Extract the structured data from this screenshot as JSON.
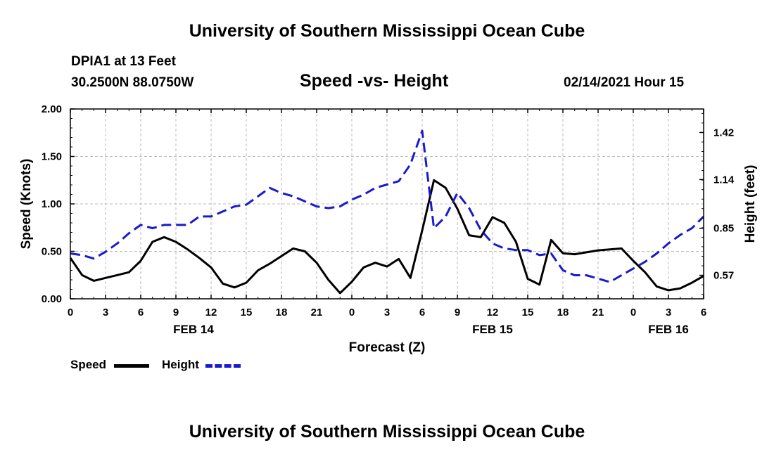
{
  "header": {
    "title": "University of Southern Mississippi Ocean Cube",
    "station": "DPIA1 at 13 Feet",
    "coords": "30.2500N 88.0750W",
    "chart_title": "Speed -vs- Height",
    "datetime": "02/14/2021 Hour 15"
  },
  "footer": {
    "title": "University of Southern Mississippi Ocean Cube"
  },
  "legend": {
    "speed": "Speed",
    "height": "Height"
  },
  "colors": {
    "speed": "#000000",
    "height": "#1a1acd",
    "grid": "#bbbbbb"
  },
  "chart_data": {
    "type": "line",
    "title": "Speed -vs- Height",
    "xlabel": "Forecast (Z)",
    "ylabel": "Speed (Knots)",
    "y2label": "Height (feet)",
    "xlim": [
      0,
      54
    ],
    "ylim": [
      0,
      2.0
    ],
    "y2lim": [
      0.43,
      1.56
    ],
    "x_ticks": [
      0,
      3,
      6,
      9,
      12,
      15,
      18,
      21,
      24,
      27,
      30,
      33,
      36,
      39,
      42,
      45,
      48,
      51,
      54
    ],
    "x_tick_labels": [
      "0",
      "3",
      "6",
      "9",
      "12",
      "15",
      "18",
      "21",
      "0",
      "3",
      "6",
      "9",
      "12",
      "15",
      "18",
      "21",
      "0",
      "3",
      "6"
    ],
    "y_ticks": [
      "0.00",
      "0.50",
      "1.00",
      "1.50",
      "2.00"
    ],
    "y2_ticks": [
      "0.57",
      "0.85",
      "1.14",
      "1.42"
    ],
    "date_labels": [
      {
        "x": 10.5,
        "label": "FEB 14"
      },
      {
        "x": 36.0,
        "label": "FEB 15"
      },
      {
        "x": 51.0,
        "label": "FEB 16"
      }
    ],
    "grid": true,
    "series": [
      {
        "name": "Speed",
        "axis": "left",
        "style": "solid",
        "x": [
          0,
          1,
          2,
          3,
          4,
          5,
          6,
          7,
          8,
          9,
          10,
          11,
          12,
          13,
          14,
          15,
          16,
          17,
          18,
          19,
          20,
          21,
          22,
          23,
          24,
          25,
          26,
          27,
          28,
          29,
          30,
          31,
          32,
          33,
          34,
          35,
          36,
          37,
          38,
          39,
          40,
          41,
          42,
          43,
          44,
          45,
          46,
          47,
          48,
          49,
          50,
          51,
          52,
          53,
          54
        ],
        "values": [
          0.43,
          0.25,
          0.19,
          0.22,
          0.25,
          0.28,
          0.4,
          0.6,
          0.65,
          0.6,
          0.52,
          0.43,
          0.33,
          0.16,
          0.12,
          0.17,
          0.3,
          0.37,
          0.45,
          0.53,
          0.5,
          0.38,
          0.2,
          0.06,
          0.18,
          0.33,
          0.38,
          0.34,
          0.42,
          0.22,
          0.72,
          1.25,
          1.17,
          0.95,
          0.67,
          0.65,
          0.86,
          0.8,
          0.6,
          0.21,
          0.15,
          0.62,
          0.48,
          0.47,
          0.49,
          0.51,
          0.52,
          0.53,
          0.4,
          0.28,
          0.13,
          0.09,
          0.11,
          0.17,
          0.24
        ]
      },
      {
        "name": "Height",
        "axis": "right",
        "style": "dashed",
        "x": [
          0,
          1,
          2,
          3,
          4,
          5,
          6,
          7,
          8,
          9,
          10,
          11,
          12,
          13,
          14,
          15,
          16,
          17,
          18,
          19,
          20,
          21,
          22,
          23,
          24,
          25,
          26,
          27,
          28,
          29,
          30,
          31,
          32,
          33,
          34,
          35,
          36,
          37,
          38,
          39,
          40,
          41,
          42,
          43,
          44,
          45,
          46,
          47,
          48,
          49,
          50,
          51,
          52,
          53,
          54
        ],
        "values": [
          0.7,
          0.69,
          0.67,
          0.71,
          0.76,
          0.82,
          0.87,
          0.85,
          0.87,
          0.87,
          0.87,
          0.92,
          0.92,
          0.95,
          0.98,
          0.99,
          1.04,
          1.09,
          1.06,
          1.04,
          1.01,
          0.98,
          0.97,
          0.98,
          1.02,
          1.05,
          1.09,
          1.11,
          1.13,
          1.23,
          1.43,
          0.85,
          0.92,
          1.06,
          0.97,
          0.84,
          0.76,
          0.73,
          0.72,
          0.72,
          0.69,
          0.7,
          0.6,
          0.57,
          0.57,
          0.55,
          0.53,
          0.57,
          0.61,
          0.65,
          0.7,
          0.76,
          0.81,
          0.85,
          0.92
        ]
      }
    ]
  }
}
